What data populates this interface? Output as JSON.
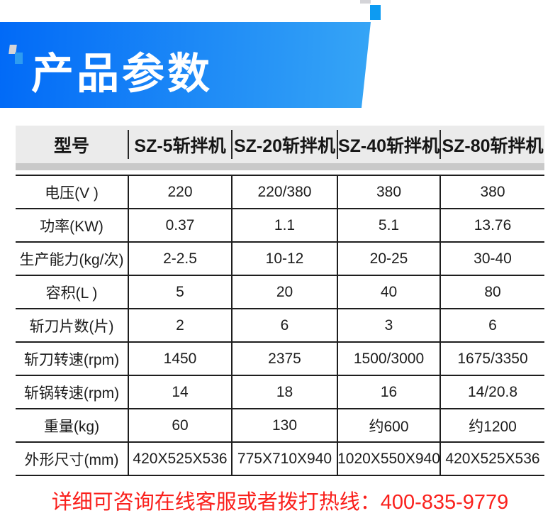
{
  "colors": {
    "banner_left": "#016af7",
    "banner_right": "#36a5f6",
    "accent_blue": "#2e9cf0",
    "accent_blue2": "#0d9bf2",
    "deco_gray": "#d4d4d8",
    "header_bg": "#ebebeb",
    "band_gray": "#c9c9c9",
    "line": "#1e1e1e",
    "hotline_red": "#fa201c"
  },
  "banner": {
    "title": "产品参数"
  },
  "table": {
    "columns": [
      "型号",
      "SZ-5斩拌机",
      "SZ-20斩拌机",
      "SZ-40斩拌机",
      "SZ-80斩拌机"
    ],
    "rows": [
      {
        "label": "电压(V )",
        "values": [
          "220",
          "220/380",
          "380",
          "380"
        ]
      },
      {
        "label": "功率(KW)",
        "values": [
          "0.37",
          "1.1",
          "5.1",
          "13.76"
        ]
      },
      {
        "label": "生产能力(kg/次)",
        "values": [
          "2-2.5",
          "10-12",
          "20-25",
          "30-40"
        ]
      },
      {
        "label": "容积(L )",
        "values": [
          "5",
          "20",
          "40",
          "80"
        ]
      },
      {
        "label": "斩刀片数(片)",
        "values": [
          "2",
          "6",
          "3",
          "6"
        ]
      },
      {
        "label": "斩刀转速(rpm)",
        "values": [
          "1450",
          "2375",
          "1500/3000",
          "1675/3350"
        ]
      },
      {
        "label": "斩锅转速(rpm)",
        "values": [
          "14",
          "18",
          "16",
          "14/20.8"
        ]
      },
      {
        "label": "重量(kg)",
        "values": [
          "60",
          "130",
          "约600",
          "约1200"
        ]
      },
      {
        "label": "外形尺寸(mm)",
        "values": [
          "420X525X536",
          "775X710X940",
          "1020X550X940",
          "420X525X536"
        ]
      }
    ]
  },
  "footer": {
    "text": "详细可咨询在线客服或者拨打热线：",
    "phone": "400-835-9779"
  }
}
